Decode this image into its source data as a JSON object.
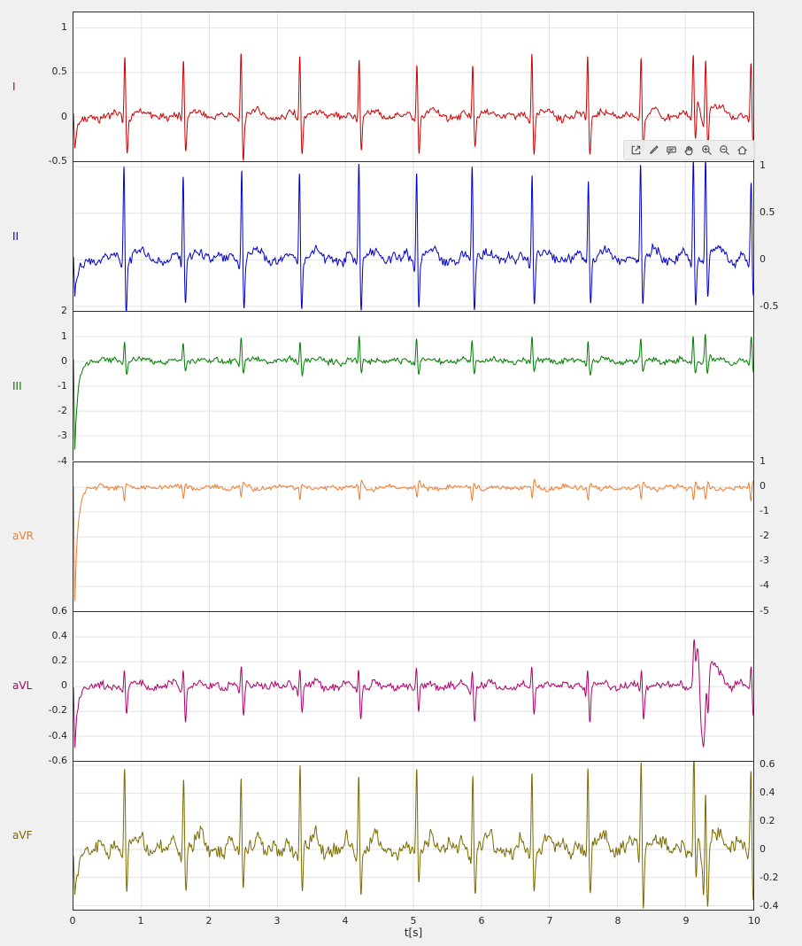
{
  "figure": {
    "background": "#f0f0f0",
    "panel_background": "#ffffff",
    "grid_color": "#e2e2e2",
    "axis_color": "#2e2e2e",
    "text_color": "#262626",
    "xlabel": "t[s]",
    "xlim": [
      0,
      10
    ],
    "x_ticks": [
      0,
      1,
      2,
      3,
      4,
      5,
      6,
      7,
      8,
      9,
      10
    ],
    "beat_times": [
      0.75,
      1.62,
      2.47,
      3.33,
      4.2,
      5.05,
      5.87,
      6.75,
      7.57,
      8.35,
      9.12,
      9.3,
      9.97
    ]
  },
  "toolbar": {
    "icons": [
      "export-icon",
      "brush-icon",
      "datatips-icon",
      "pan-icon",
      "zoom-in-icon",
      "zoom-out-icon",
      "restore-view-icon"
    ]
  },
  "chart_data": [
    {
      "type": "line",
      "name": "I",
      "color": "#cc0000",
      "axis_side": "left",
      "ylim": [
        -0.5,
        1.175
      ],
      "yticks": [
        1,
        0.5,
        0,
        -0.5
      ],
      "ylabel": "",
      "signal": {
        "seed": 1,
        "noise": 0.05,
        "p": 0.04,
        "q": -0.05,
        "r": 0.68,
        "s": -0.4,
        "t_wave": 0.08,
        "transient": {
          "amp": -0.35,
          "tau": 0.05
        },
        "artifact": {
          "center": 9.18,
          "up": 0.15,
          "down": -0.1
        }
      }
    },
    {
      "type": "line",
      "name": "II",
      "color": "#0000cc",
      "axis_side": "right",
      "ylim": [
        -0.55,
        1.05
      ],
      "yticks": [
        1,
        0.5,
        0,
        -0.5
      ],
      "ylabel": "",
      "signal": {
        "seed": 2,
        "noise": 0.07,
        "p": 0.06,
        "q": -0.06,
        "r": 1.0,
        "s": -0.52,
        "t_wave": 0.12,
        "transient": {
          "amp": -0.45,
          "tau": 0.05
        },
        "artifact": null
      }
    },
    {
      "type": "line",
      "name": "III",
      "color": "#007d00",
      "axis_side": "left",
      "ylim": [
        -4,
        2
      ],
      "yticks": [
        2,
        1,
        0,
        -1,
        -2,
        -3,
        -4
      ],
      "ylabel": "",
      "signal": {
        "seed": 3,
        "noise": 0.15,
        "p": 0.05,
        "q": -0.06,
        "r": 0.95,
        "s": -0.5,
        "t_wave": 0.1,
        "transient": {
          "amp": -3.6,
          "tau": 0.045
        },
        "artifact": null
      }
    },
    {
      "type": "line",
      "name": "aVR",
      "color": "#ed7d31",
      "axis_side": "right",
      "ylim": [
        -5,
        1
      ],
      "yticks": [
        1,
        0,
        -1,
        -2,
        -3,
        -4,
        -5
      ],
      "ylabel": "",
      "signal": {
        "seed": 4,
        "noise": 0.12,
        "p": -0.04,
        "q": 0.06,
        "r": -0.5,
        "s": 0.2,
        "t_wave": -0.08,
        "transient": {
          "amp": -4.6,
          "tau": 0.045
        },
        "artifact": null
      }
    },
    {
      "type": "line",
      "name": "aVL",
      "color": "#b0006d",
      "axis_side": "left",
      "ylim": [
        -0.6,
        0.6
      ],
      "yticks": [
        0.6,
        0.4,
        0.2,
        0,
        -0.2,
        -0.4,
        -0.6
      ],
      "ylabel": "",
      "signal": {
        "seed": 5,
        "noise": 0.04,
        "p": 0.02,
        "q": -0.04,
        "r": 0.16,
        "s": -0.26,
        "t_wave": 0.03,
        "transient": {
          "amp": -0.5,
          "tau": 0.04
        },
        "artifact": {
          "center": 9.17,
          "up": 0.48,
          "down": -0.52
        }
      }
    },
    {
      "type": "line",
      "name": "aVF",
      "color": "#7a6a00",
      "axis_side": "right",
      "ylim": [
        -0.43,
        0.625
      ],
      "yticks": [
        0.6,
        0.4,
        0.2,
        0,
        -0.2,
        -0.4
      ],
      "ylabel": "",
      "signal": {
        "seed": 6,
        "noise": 0.07,
        "p": 0.05,
        "q": -0.06,
        "r": 0.58,
        "s": -0.32,
        "t_wave": 0.1,
        "transient": {
          "amp": -0.3,
          "tau": 0.05
        },
        "artifact": {
          "center": 9.2,
          "up": 0.12,
          "down": -0.35
        }
      }
    }
  ]
}
